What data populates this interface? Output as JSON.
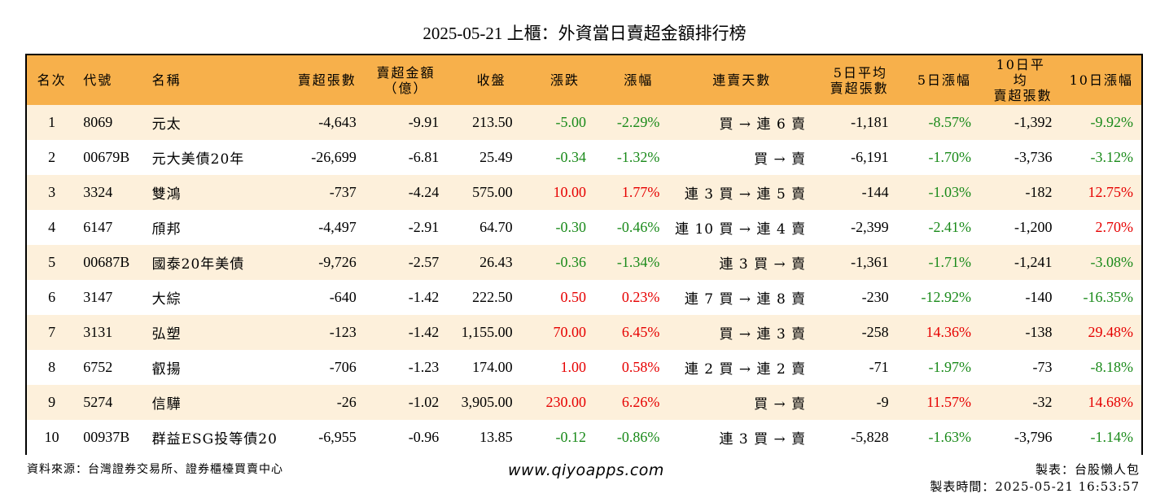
{
  "title": "2025-05-21 上櫃：外資當日賣超金額排行榜",
  "headers": {
    "rank": "名次",
    "code": "代號",
    "name": "名稱",
    "sell_shares": "賣超張數",
    "sell_amount_l1": "賣超金額",
    "sell_amount_l2": "（億）",
    "close": "收盤",
    "change": "漲跌",
    "change_pct": "漲幅",
    "streak": "連賣天數",
    "d5_avg_l1": "5日平均",
    "d5_avg_l2": "賣超張數",
    "d5_pct": "5日漲幅",
    "d10_avg_l1": "10日平均",
    "d10_avg_l2": "賣超張數",
    "d10_pct": "10日漲幅"
  },
  "colors": {
    "header_bg": "#f7b04b",
    "stripe_bg": "#fdf0db",
    "up": "#e60000",
    "down": "#1a8a1a"
  },
  "rows": [
    {
      "rank": "1",
      "code": "8069",
      "name": "元太",
      "sell_shares": "-4,643",
      "sell_amount": "-9.91",
      "close": "213.50",
      "change": "-5.00",
      "change_pct": "-2.29%",
      "streak": "買 → 連 6 賣",
      "d5_avg": "-1,181",
      "d5_pct": "-8.57%",
      "d10_avg": "-1,392",
      "d10_pct": "-9.92%"
    },
    {
      "rank": "2",
      "code": "00679B",
      "name": "元大美債20年",
      "sell_shares": "-26,699",
      "sell_amount": "-6.81",
      "close": "25.49",
      "change": "-0.34",
      "change_pct": "-1.32%",
      "streak": "買 → 賣",
      "d5_avg": "-6,191",
      "d5_pct": "-1.70%",
      "d10_avg": "-3,736",
      "d10_pct": "-3.12%"
    },
    {
      "rank": "3",
      "code": "3324",
      "name": "雙鴻",
      "sell_shares": "-737",
      "sell_amount": "-4.24",
      "close": "575.00",
      "change": "10.00",
      "change_pct": "1.77%",
      "streak": "連 3 買 → 連 5 賣",
      "d5_avg": "-144",
      "d5_pct": "-1.03%",
      "d10_avg": "-182",
      "d10_pct": "12.75%"
    },
    {
      "rank": "4",
      "code": "6147",
      "name": "頎邦",
      "sell_shares": "-4,497",
      "sell_amount": "-2.91",
      "close": "64.70",
      "change": "-0.30",
      "change_pct": "-0.46%",
      "streak": "連 10 買 → 連 4 賣",
      "d5_avg": "-2,399",
      "d5_pct": "-2.41%",
      "d10_avg": "-1,200",
      "d10_pct": "2.70%"
    },
    {
      "rank": "5",
      "code": "00687B",
      "name": "國泰20年美債",
      "sell_shares": "-9,726",
      "sell_amount": "-2.57",
      "close": "26.43",
      "change": "-0.36",
      "change_pct": "-1.34%",
      "streak": "連 3 買 → 賣",
      "d5_avg": "-1,361",
      "d5_pct": "-1.71%",
      "d10_avg": "-1,241",
      "d10_pct": "-3.08%"
    },
    {
      "rank": "6",
      "code": "3147",
      "name": "大綜",
      "sell_shares": "-640",
      "sell_amount": "-1.42",
      "close": "222.50",
      "change": "0.50",
      "change_pct": "0.23%",
      "streak": "連 7 買 → 連 8 賣",
      "d5_avg": "-230",
      "d5_pct": "-12.92%",
      "d10_avg": "-140",
      "d10_pct": "-16.35%"
    },
    {
      "rank": "7",
      "code": "3131",
      "name": "弘塑",
      "sell_shares": "-123",
      "sell_amount": "-1.42",
      "close": "1,155.00",
      "change": "70.00",
      "change_pct": "6.45%",
      "streak": "買 → 連 3 賣",
      "d5_avg": "-258",
      "d5_pct": "14.36%",
      "d10_avg": "-138",
      "d10_pct": "29.48%"
    },
    {
      "rank": "8",
      "code": "6752",
      "name": "叡揚",
      "sell_shares": "-706",
      "sell_amount": "-1.23",
      "close": "174.00",
      "change": "1.00",
      "change_pct": "0.58%",
      "streak": "連 2 買 → 連 2 賣",
      "d5_avg": "-71",
      "d5_pct": "-1.97%",
      "d10_avg": "-73",
      "d10_pct": "-8.18%"
    },
    {
      "rank": "9",
      "code": "5274",
      "name": "信驊",
      "sell_shares": "-26",
      "sell_amount": "-1.02",
      "close": "3,905.00",
      "change": "230.00",
      "change_pct": "6.26%",
      "streak": "買 → 賣",
      "d5_avg": "-9",
      "d5_pct": "11.57%",
      "d10_avg": "-32",
      "d10_pct": "14.68%"
    },
    {
      "rank": "10",
      "code": "00937B",
      "name": "群益ESG投等債20",
      "sell_shares": "-6,955",
      "sell_amount": "-0.96",
      "close": "13.85",
      "change": "-0.12",
      "change_pct": "-0.86%",
      "streak": "連 3 買 → 賣",
      "d5_avg": "-5,828",
      "d5_pct": "-1.63%",
      "d10_avg": "-3,796",
      "d10_pct": "-1.14%"
    }
  ],
  "footer": {
    "source": "資料來源：台灣證券交易所、證券櫃檯買賣中心",
    "website": "www.qiyoapps.com",
    "author": "製表：台股懶人包",
    "timestamp": "製表時間：2025-05-21 16:53:57"
  }
}
